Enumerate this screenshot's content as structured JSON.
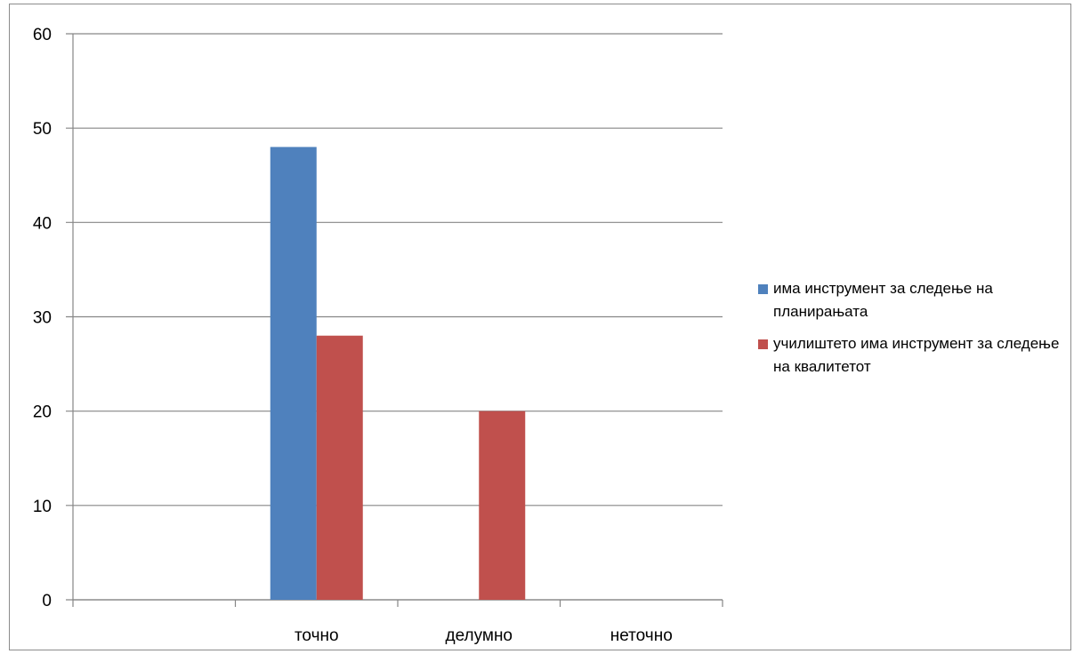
{
  "chart_data": {
    "type": "bar",
    "categories": [
      "",
      "точно",
      "делумно",
      "неточно"
    ],
    "series": [
      {
        "name": "има инструмент за следење на планирањата",
        "color": "#4f81bd",
        "values": [
          0,
          48,
          0,
          0
        ]
      },
      {
        "name": "училиштето има инструмент за следење на квалитетот",
        "color": "#c0504d",
        "values": [
          0,
          28,
          20,
          0
        ]
      }
    ],
    "yticks": [
      0,
      10,
      20,
      30,
      40,
      50,
      60
    ],
    "ylim": [
      0,
      60
    ],
    "grid": true,
    "legend_position": "right"
  }
}
